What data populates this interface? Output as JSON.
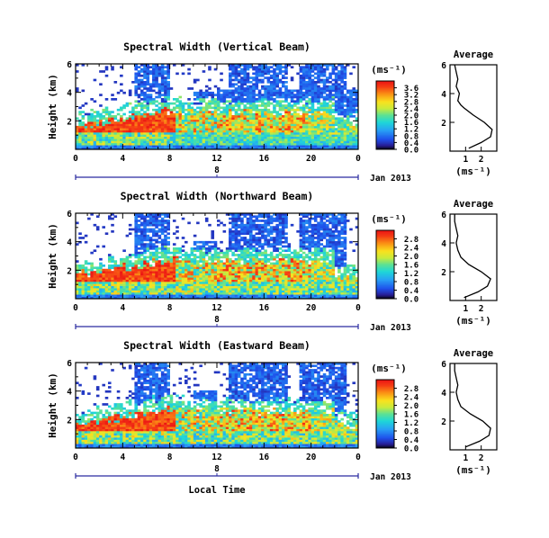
{
  "chart_data": [
    {
      "type": "heatmap",
      "title": "Spectral Width (Vertical Beam)",
      "ylabel": "Height (km)",
      "xlabel": "",
      "x_ticks": [
        "0",
        "4",
        "8",
        "12",
        "16",
        "20",
        "0"
      ],
      "y_ticks": [
        "2",
        "4",
        "6"
      ],
      "xlim_hours": [
        0,
        24
      ],
      "ylim_km": [
        0,
        6
      ],
      "date_axis": {
        "label": "8",
        "date": "Jan 2013"
      },
      "colorbar": {
        "unit": "(ms⁻¹)",
        "ticks": [
          "0.0",
          "0.4",
          "0.8",
          "1.2",
          "1.6",
          "2.0",
          "2.4",
          "2.8",
          "3.2",
          "3.6"
        ],
        "range": [
          0,
          4.0
        ]
      },
      "average": {
        "title": "Average",
        "xlabel": "(ms⁻¹)",
        "x_ticks": [
          "1",
          "2"
        ],
        "y_ticks": [
          "2",
          "4",
          "6"
        ],
        "height_km": [
          0.2,
          0.6,
          1.0,
          1.5,
          2.0,
          2.5,
          3.0,
          3.2,
          3.5,
          4.0,
          4.5,
          5.0,
          5.5,
          6.0
        ],
        "width_ms": [
          1.2,
          2.0,
          2.6,
          2.7,
          2.2,
          1.5,
          0.9,
          0.7,
          0.5,
          0.6,
          0.4,
          0.5,
          0.4,
          0.3
        ]
      }
    },
    {
      "type": "heatmap",
      "title": "Spectral Width (Northward Beam)",
      "ylabel": "Height (km)",
      "xlabel": "",
      "x_ticks": [
        "0",
        "4",
        "8",
        "12",
        "16",
        "20",
        "0"
      ],
      "y_ticks": [
        "2",
        "4",
        "6"
      ],
      "xlim_hours": [
        0,
        24
      ],
      "ylim_km": [
        0,
        6
      ],
      "date_axis": {
        "label": "8",
        "date": "Jan 2013"
      },
      "colorbar": {
        "unit": "(ms⁻¹)",
        "ticks": [
          "0.0",
          "0.4",
          "0.8",
          "1.2",
          "1.6",
          "2.0",
          "2.4",
          "2.8"
        ],
        "range": [
          0,
          3.2
        ]
      },
      "average": {
        "title": "Average",
        "xlabel": "(ms⁻¹)",
        "x_ticks": [
          "1",
          "2"
        ],
        "y_ticks": [
          "2",
          "4",
          "6"
        ],
        "height_km": [
          0.2,
          0.6,
          1.0,
          1.5,
          2.0,
          2.5,
          3.0,
          3.5,
          4.0,
          4.5,
          5.0,
          5.5,
          6.0
        ],
        "width_ms": [
          0.9,
          1.8,
          2.4,
          2.6,
          2.0,
          1.2,
          0.7,
          0.5,
          0.4,
          0.5,
          0.4,
          0.3,
          0.3
        ]
      }
    },
    {
      "type": "heatmap",
      "title": "Spectral Width (Eastward Beam)",
      "ylabel": "Height (km)",
      "xlabel": "Local Time",
      "x_ticks": [
        "0",
        "4",
        "8",
        "12",
        "16",
        "20",
        "0"
      ],
      "y_ticks": [
        "2",
        "4",
        "6"
      ],
      "xlim_hours": [
        0,
        24
      ],
      "ylim_km": [
        0,
        6
      ],
      "date_axis": {
        "label": "8",
        "date": "Jan 2013"
      },
      "colorbar": {
        "unit": "(ms⁻¹)",
        "ticks": [
          "0.0",
          "0.4",
          "0.8",
          "1.2",
          "1.6",
          "2.0",
          "2.4",
          "2.8"
        ],
        "range": [
          0,
          3.2
        ]
      },
      "average": {
        "title": "Average",
        "xlabel": "(ms⁻¹)",
        "x_ticks": [
          "1",
          "2"
        ],
        "y_ticks": [
          "2",
          "4",
          "6"
        ],
        "height_km": [
          0.2,
          0.6,
          1.0,
          1.5,
          2.0,
          2.5,
          3.0,
          3.5,
          4.0,
          4.5,
          5.0,
          5.5,
          6.0
        ],
        "width_ms": [
          1.0,
          1.9,
          2.5,
          2.6,
          2.1,
          1.3,
          0.7,
          0.5,
          0.4,
          0.5,
          0.4,
          0.3,
          0.3
        ]
      }
    }
  ]
}
